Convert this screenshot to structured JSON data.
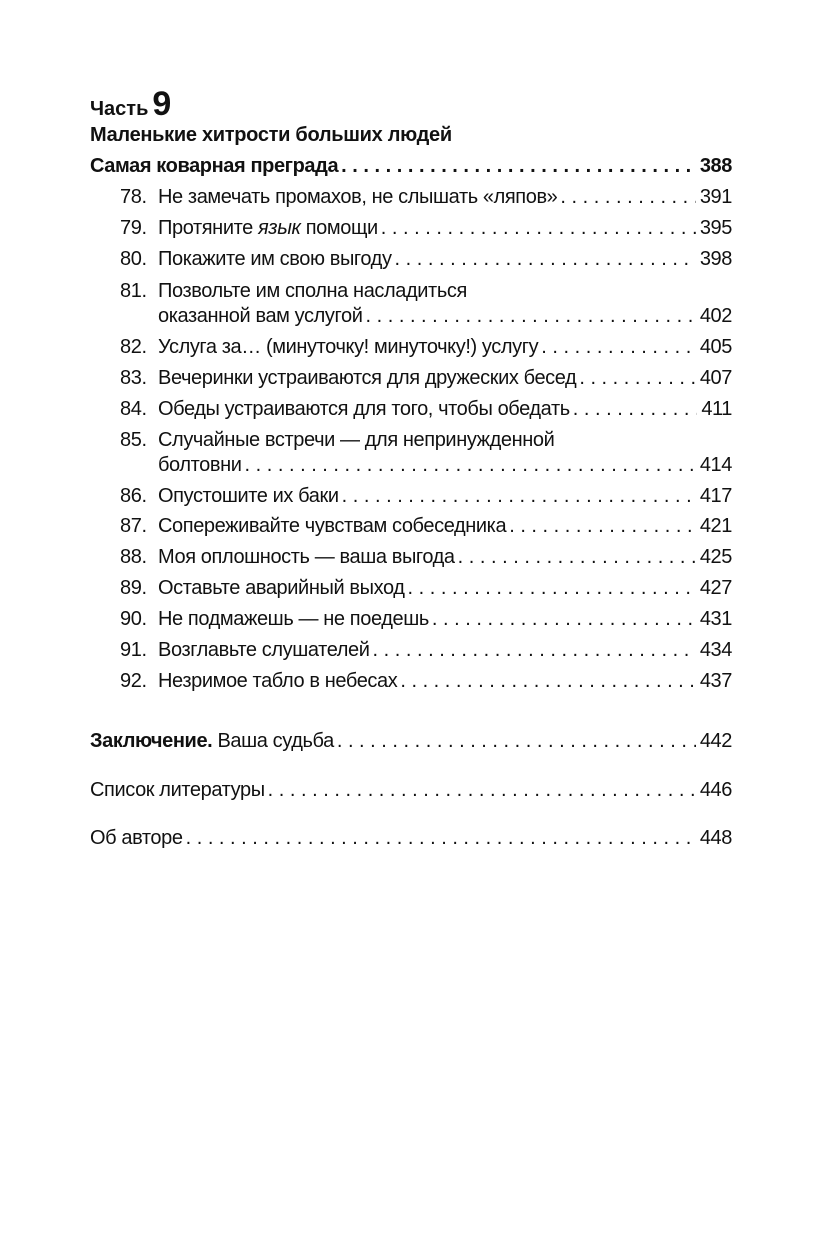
{
  "part": {
    "label": "Часть",
    "number": "9"
  },
  "heading": "Маленькие хитрости больших людей",
  "section": {
    "title": "Самая коварная преграда",
    "page": "388"
  },
  "items": [
    {
      "no": "78.",
      "title": "Не замечать промахов, не слышать «ляпов»",
      "page": "391"
    },
    {
      "no": "79.",
      "title_before": "Протяните ",
      "title_italic": "язык",
      "title_after": " помощи",
      "page": "395"
    },
    {
      "no": "80.",
      "title": "Покажите им свою выгоду",
      "page": "398"
    },
    {
      "no": "81.",
      "title_line1": "Позвольте им сполна насладиться",
      "title": "оказанной вам услугой",
      "page": "402"
    },
    {
      "no": "82.",
      "title": "Услуга за… (минуточку! минуточку!) услугу",
      "page": "405"
    },
    {
      "no": "83.",
      "title": "Вечеринки устраиваются для дружеских бесед",
      "page": "407"
    },
    {
      "no": "84.",
      "title": "Обеды устраиваются для того, чтобы обедать",
      "page": "411"
    },
    {
      "no": "85.",
      "title_line1": "Случайные встречи — для непринужденной",
      "title": "болтовни",
      "page": "414"
    },
    {
      "no": "86.",
      "title": "Опустошите их баки",
      "page": "417"
    },
    {
      "no": "87.",
      "title": "Сопереживайте чувствам собеседника",
      "page": "421"
    },
    {
      "no": "88.",
      "title": "Моя оплошность — ваша выгода",
      "page": "425"
    },
    {
      "no": "89.",
      "title": "Оставьте аварийный выход",
      "page": "427"
    },
    {
      "no": "90.",
      "title": "Не подмажешь — не поедешь",
      "page": "431"
    },
    {
      "no": "91.",
      "title": "Возглавьте слушателей",
      "page": "434"
    },
    {
      "no": "92.",
      "title": "Незримое табло в небесах",
      "page": "437"
    }
  ],
  "conclusion": {
    "label": "Заключение.",
    "title": " Ваша судьба",
    "page": "442"
  },
  "bibliography": {
    "title": "Список литературы",
    "page": "446"
  },
  "about": {
    "title": "Об авторе",
    "page": "448"
  }
}
